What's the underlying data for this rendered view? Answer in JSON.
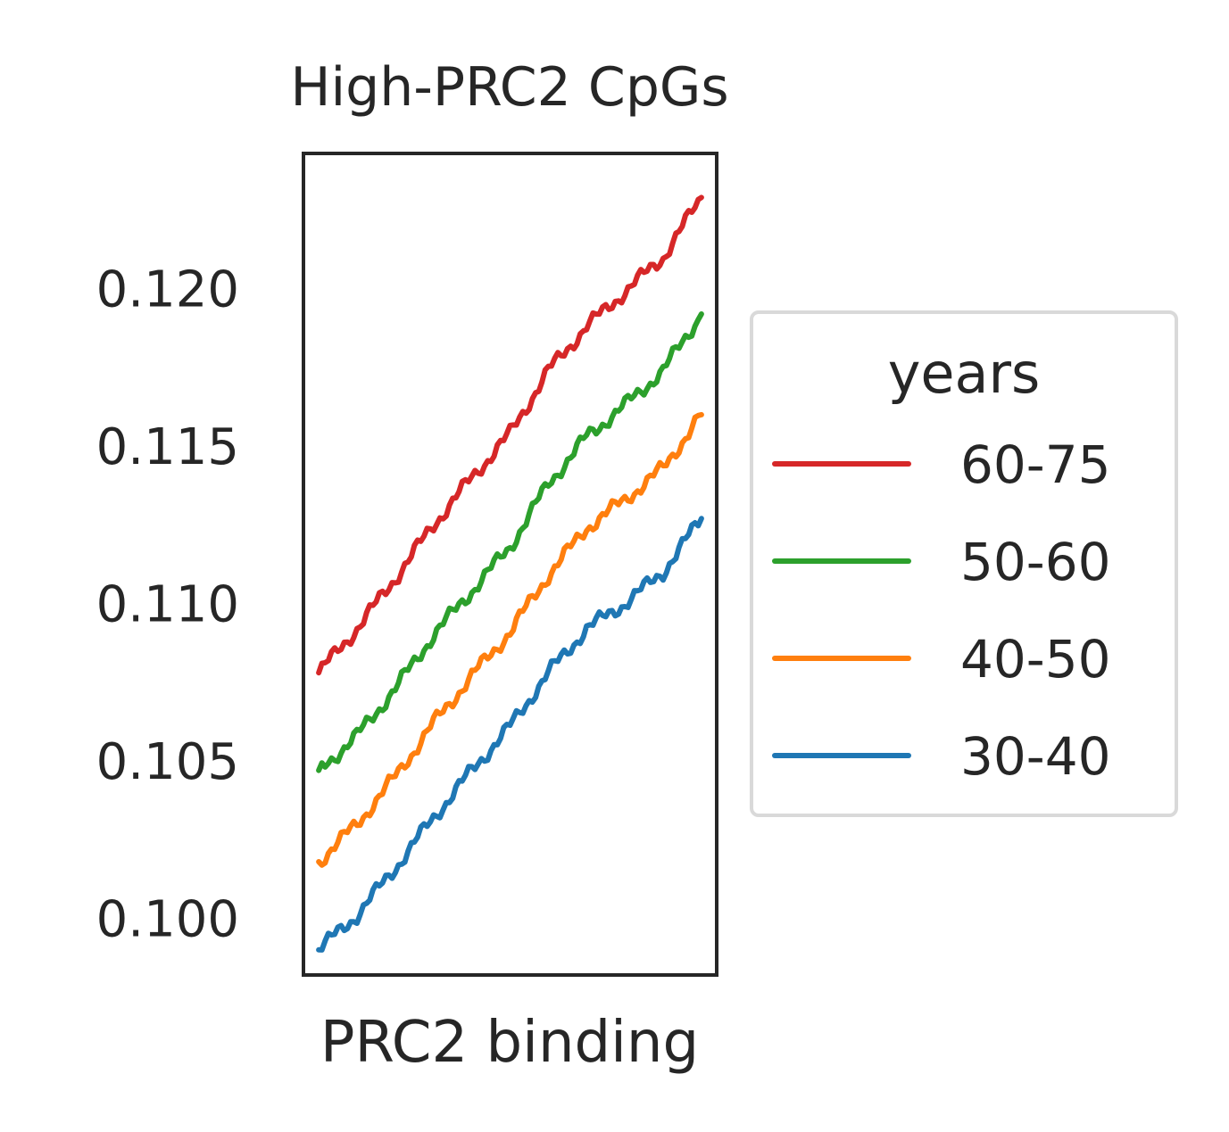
{
  "chart_data": {
    "type": "line",
    "title": "High-PRC2 CpGs",
    "xlabel": "PRC2 binding",
    "ylabel": "",
    "ylim": [
      0.0982,
      0.1243
    ],
    "xlim": [
      -0.04,
      1.04
    ],
    "yticks": [
      0.1,
      0.105,
      0.11,
      0.115,
      0.12
    ],
    "ytick_labels": [
      "0.100",
      "0.105",
      "0.110",
      "0.115",
      "0.120"
    ],
    "grid": false,
    "legend": {
      "title": "years",
      "placement": "right"
    },
    "x": [
      0.0,
      0.1,
      0.2,
      0.3,
      0.4,
      0.5,
      0.6,
      0.7,
      0.8,
      0.9,
      1.0
    ],
    "series": [
      {
        "name": "60-75",
        "color": "#d62728",
        "values": [
          0.1078,
          0.1092,
          0.1108,
          0.1125,
          0.114,
          0.1154,
          0.1174,
          0.1188,
          0.1199,
          0.121,
          0.1229
        ]
      },
      {
        "name": "50-60",
        "color": "#2ca02c",
        "values": [
          0.1047,
          0.1058,
          0.1073,
          0.109,
          0.1104,
          0.1118,
          0.1138,
          0.1153,
          0.1163,
          0.1174,
          0.1192
        ]
      },
      {
        "name": "40-50",
        "color": "#ff7f0e",
        "values": [
          0.1018,
          0.103,
          0.1045,
          0.1062,
          0.1077,
          0.1091,
          0.1109,
          0.1124,
          0.1133,
          0.1143,
          0.116
        ]
      },
      {
        "name": "30-40",
        "color": "#1f77b4",
        "values": [
          0.099,
          0.1001,
          0.1016,
          0.1032,
          0.1047,
          0.1061,
          0.1078,
          0.1092,
          0.11,
          0.111,
          0.1127
        ]
      }
    ]
  }
}
